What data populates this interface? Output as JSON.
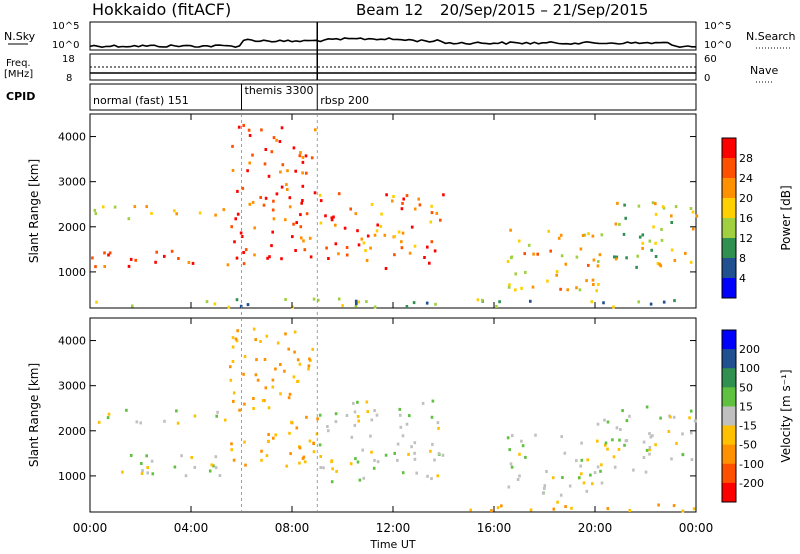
{
  "header": {
    "title": "Hokkaido (fitACF)",
    "beam": "Beam 12",
    "date_range": "20/Sep/2015 – 21/Sep/2015"
  },
  "noise_panel": {
    "left_label": "N.Sky",
    "right_label": "N.Search",
    "y_ticks": [
      "10^5",
      "10^0"
    ]
  },
  "freq_panel": {
    "left_label_1": "Freq.",
    "left_label_2": "[MHz]",
    "left_ticks": [
      "18",
      "8"
    ],
    "right_ticks": [
      "60",
      "0"
    ],
    "right_label": "Nave"
  },
  "cpid_panel": {
    "label": "CPID",
    "modes": [
      {
        "name": "normal (fast) 151",
        "start_hour": 0
      },
      {
        "name": "themis 3300",
        "start_hour": 6
      },
      {
        "name": "rbsp 200",
        "start_hour": 9
      }
    ]
  },
  "colors": {
    "frame": "#000000",
    "background": "#ffffff"
  },
  "chart_data": [
    {
      "type": "heatmap",
      "title": "Power",
      "ylabel": "Slant Range [km]",
      "xlabel": "Time UT",
      "xlim": [
        0,
        24
      ],
      "ylim": [
        200,
        4500
      ],
      "x_ticks": [
        "00:00",
        "04:00",
        "08:00",
        "12:00",
        "16:00",
        "20:00",
        "00:00"
      ],
      "y_ticks": [
        1000,
        2000,
        3000,
        4000
      ],
      "colorbar": {
        "label": "Power [dB]",
        "tick_labels": [
          "28",
          "24",
          "20",
          "16",
          "12",
          "8",
          "4"
        ],
        "colors": [
          "#ff0000",
          "#ff5000",
          "#ff9000",
          "#ffd000",
          "#a0d040",
          "#309050",
          "#205090",
          "#0000ff"
        ]
      },
      "echo_bands": [
        {
          "t_start": 0,
          "t_end": 5.5,
          "range_start": 1100,
          "range_end": 1500,
          "level": 24
        },
        {
          "t_start": 0,
          "t_end": 5.5,
          "range_start": 2200,
          "range_end": 2500,
          "level": 12
        },
        {
          "t_start": 5.5,
          "t_end": 9,
          "range_start": 1200,
          "range_end": 4300,
          "level": 24
        },
        {
          "t_start": 9,
          "t_end": 14,
          "range_start": 1100,
          "range_end": 2800,
          "level": 20
        },
        {
          "t_start": 16.5,
          "t_end": 20.5,
          "range_start": 600,
          "range_end": 2000,
          "level": 16
        },
        {
          "t_start": 20,
          "t_end": 24,
          "range_start": 1100,
          "range_end": 2600,
          "level": 12
        },
        {
          "t_start": 0,
          "t_end": 24,
          "range_start": 250,
          "range_end": 450,
          "level": 8
        }
      ]
    },
    {
      "type": "heatmap",
      "title": "Velocity",
      "ylabel": "Slant Range [km]",
      "xlabel": "Time UT",
      "xlim": [
        0,
        24
      ],
      "ylim": [
        200,
        4500
      ],
      "x_ticks": [
        "00:00",
        "04:00",
        "08:00",
        "12:00",
        "16:00",
        "20:00",
        "00:00"
      ],
      "y_ticks": [
        1000,
        2000,
        3000,
        4000
      ],
      "colorbar": {
        "label": "Velocity [m s⁻¹]",
        "tick_labels": [
          "200",
          "100",
          "50",
          "15",
          "-15",
          "-50",
          "-100",
          "-200"
        ],
        "colors": [
          "#0000ff",
          "#205090",
          "#309050",
          "#60c040",
          "#c0c0c0",
          "#ffc000",
          "#ff9000",
          "#ff5000",
          "#ff0000"
        ]
      },
      "echo_bands": [
        {
          "t_start": 0,
          "t_end": 5.5,
          "range_start": 1000,
          "range_end": 1500,
          "velocity": 0
        },
        {
          "t_start": 0,
          "t_end": 5.5,
          "range_start": 2200,
          "range_end": 2500,
          "velocity": 0
        },
        {
          "t_start": 5.5,
          "t_end": 9,
          "range_start": 1200,
          "range_end": 4300,
          "velocity": -50
        },
        {
          "t_start": 9,
          "t_end": 14,
          "range_start": 900,
          "range_end": 2700,
          "velocity": 0
        },
        {
          "t_start": 16.5,
          "t_end": 20.5,
          "range_start": 600,
          "range_end": 2000,
          "velocity": 0
        },
        {
          "t_start": 20,
          "t_end": 24,
          "range_start": 1100,
          "range_end": 2600,
          "velocity": 0
        },
        {
          "t_start": 14,
          "t_end": 24,
          "range_start": 250,
          "range_end": 450,
          "velocity": -50
        }
      ]
    }
  ]
}
